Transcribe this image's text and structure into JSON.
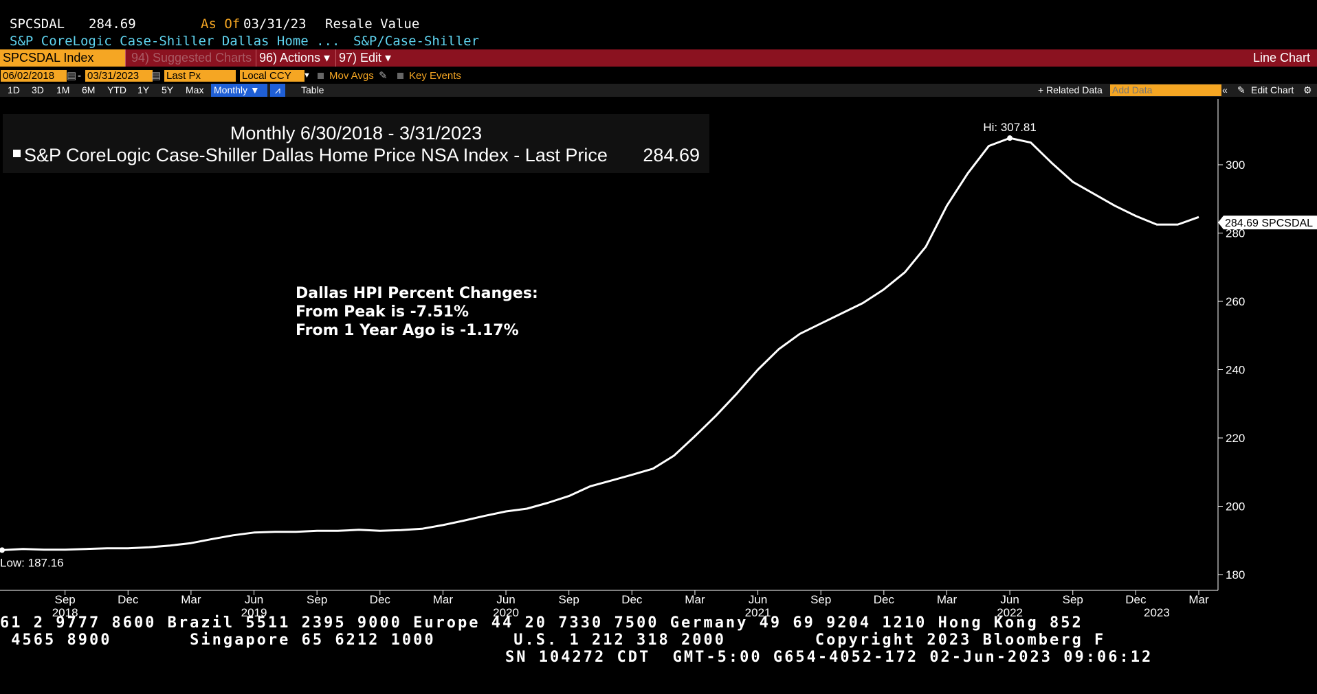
{
  "header": {
    "ticker": "SPCSDAL",
    "price": "284.69",
    "as_of_label": "As Of",
    "as_of_date": "03/31/23",
    "value_type": "Resale Value",
    "name": "S&P CoreLogic Case-Shiller Dallas Home ...",
    "source": "S&P/Case-Shiller"
  },
  "toolbar": {
    "security": "SPCSDAL Index",
    "suggested": "94) Suggested Charts",
    "actions": "96) Actions ▾",
    "edit": "97) Edit ▾",
    "chart_type": "Line Chart"
  },
  "options": {
    "start_date": "06/02/2018",
    "end_date": "03/31/2023",
    "field": "Last Px",
    "currency": "Local CCY",
    "mov_avgs": "Mov Avgs",
    "key_events": "Key Events"
  },
  "ranges": {
    "items": [
      "1D",
      "3D",
      "1M",
      "6M",
      "YTD",
      "1Y",
      "5Y",
      "Max"
    ],
    "period": "Monthly ▼",
    "table": "Table",
    "related": "+ Related Data",
    "add_data_placeholder": "Add Data",
    "edit_chart": "Edit Chart"
  },
  "chart_data": {
    "type": "line",
    "title": "Monthly 6/30/2018 - 3/31/2023",
    "legend_entry": "S&P CoreLogic Case-Shiller Dallas Home Price NSA Index - Last Price",
    "legend_value": "284.69",
    "annotation": {
      "line1": "Dallas HPI Percent Changes:",
      "line2": "From Peak is -7.51%",
      "line3": "From 1 Year Ago is -1.17%"
    },
    "hi_label": "Hi: 307.81",
    "low_label": "Low: 187.16",
    "last_label": "284.69 SPCSDAL",
    "ylim": [
      177,
      318
    ],
    "yticks": [
      180,
      200,
      220,
      240,
      260,
      280,
      300
    ],
    "x_month_labels": [
      "Sep",
      "Dec",
      "Mar",
      "Jun",
      "Sep",
      "Dec",
      "Mar",
      "Jun",
      "Sep",
      "Dec",
      "Mar",
      "Jun",
      "Sep",
      "Dec",
      "Mar",
      "Jun",
      "Sep",
      "Dec",
      "Mar"
    ],
    "x_year_labels": [
      "2018",
      "2019",
      "2020",
      "2021",
      "2022",
      "2023"
    ],
    "series": [
      {
        "start": "2018-06",
        "end": "2023-03",
        "values": [
          187.16,
          187.5,
          187.3,
          187.3,
          187.5,
          187.7,
          187.7,
          188.0,
          188.5,
          189.2,
          190.4,
          191.5,
          192.3,
          192.5,
          192.5,
          192.8,
          192.8,
          193.1,
          192.8,
          193.0,
          193.4,
          194.5,
          195.8,
          197.2,
          198.5,
          199.3,
          201.0,
          203.0,
          205.8,
          207.5,
          209.2,
          211.0,
          214.8,
          220.5,
          226.5,
          233.0,
          240.0,
          246.0,
          250.5,
          253.5,
          256.5,
          259.5,
          263.5,
          268.5,
          276.0,
          288.0,
          297.5,
          305.5,
          307.81,
          306.5,
          300.5,
          295.0,
          291.5,
          288.0,
          285.0,
          282.5,
          282.5,
          284.69
        ]
      }
    ]
  },
  "footer": {
    "line1": "61 2 9777 8600 Brazil 5511 2395 9000 Europe 44 20 7330 7500 Germany 49 69 9204 1210 Hong Kong 852",
    "line2": " 4565 8900       Singapore 65 6212 1000       U.S. 1 212 318 2000        Copyright 2023 Bloomberg F",
    "line3": "SN 104272 CDT  GMT-5:00 G654-4052-172 02-Jun-2023 09:06:12"
  }
}
